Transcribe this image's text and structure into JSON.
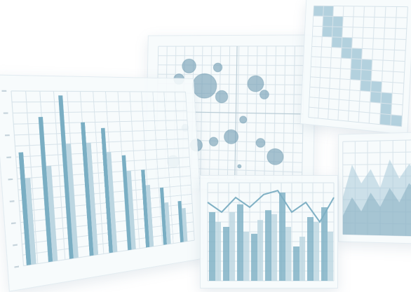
{
  "palette": {
    "bar_dark": "#7aaec3",
    "bar_light": "#bcd6e1",
    "bubble": "#6f9bb2",
    "cell": "#9cc3d3",
    "area": "#a9cad8",
    "grid": "#d7e3ea"
  },
  "panels": [
    {
      "name": "perspective-bar-chart",
      "type": "bar",
      "values_a": [
        52,
        68,
        78,
        65,
        62,
        48,
        40,
        30,
        22
      ],
      "values_b": [
        40,
        45,
        55,
        55,
        50,
        40,
        32,
        22,
        18
      ],
      "ylim": [
        0,
        80
      ]
    },
    {
      "name": "bubble-scatter-chart",
      "type": "scatter",
      "bubbles": [
        {
          "x": 0.15,
          "y": 0.75,
          "r": 0.06
        },
        {
          "x": 0.22,
          "y": 0.85,
          "r": 0.08
        },
        {
          "x": 0.33,
          "y": 0.7,
          "r": 0.14
        },
        {
          "x": 0.45,
          "y": 0.62,
          "r": 0.07
        },
        {
          "x": 0.42,
          "y": 0.84,
          "r": 0.05
        },
        {
          "x": 0.68,
          "y": 0.72,
          "r": 0.09
        },
        {
          "x": 0.74,
          "y": 0.64,
          "r": 0.05
        },
        {
          "x": 0.2,
          "y": 0.38,
          "r": 0.04
        },
        {
          "x": 0.28,
          "y": 0.25,
          "r": 0.07
        },
        {
          "x": 0.4,
          "y": 0.28,
          "r": 0.05
        },
        {
          "x": 0.52,
          "y": 0.32,
          "r": 0.08
        },
        {
          "x": 0.6,
          "y": 0.45,
          "r": 0.04
        },
        {
          "x": 0.72,
          "y": 0.28,
          "r": 0.05
        },
        {
          "x": 0.82,
          "y": 0.18,
          "r": 0.09
        },
        {
          "x": 0.12,
          "y": 0.12,
          "r": 0.07
        },
        {
          "x": 0.58,
          "y": 0.1,
          "r": 0.02
        }
      ]
    },
    {
      "name": "heatmap-chart",
      "type": "heatmap",
      "rows": 11,
      "cols": 9,
      "cells": [
        [
          0,
          0
        ],
        [
          0,
          1
        ],
        [
          1,
          1
        ],
        [
          1,
          2
        ],
        [
          2,
          1
        ],
        [
          2,
          2
        ],
        [
          3,
          2
        ],
        [
          3,
          3
        ],
        [
          4,
          3
        ],
        [
          4,
          4
        ],
        [
          5,
          4
        ],
        [
          5,
          5
        ],
        [
          6,
          5
        ],
        [
          7,
          5
        ],
        [
          7,
          6
        ],
        [
          8,
          6
        ],
        [
          9,
          7
        ],
        [
          10,
          7
        ],
        [
          10,
          8
        ],
        [
          6,
          4
        ],
        [
          8,
          7
        ]
      ]
    },
    {
      "name": "front-bar-line-chart",
      "type": "bar",
      "values_a": [
        70,
        55,
        78,
        48,
        72,
        90,
        35,
        65,
        75
      ],
      "values_b": [
        60,
        70,
        50,
        62,
        68,
        55,
        45,
        60,
        50
      ],
      "line": [
        80,
        70,
        85,
        75,
        88,
        92,
        70,
        80,
        60,
        85
      ],
      "ylim": [
        0,
        100
      ]
    },
    {
      "name": "area-chart",
      "type": "area",
      "series_a": [
        40,
        75,
        55,
        70,
        50,
        80,
        60,
        75,
        65
      ],
      "series_b": [
        20,
        40,
        25,
        45,
        30,
        50,
        35,
        55,
        45
      ],
      "ylim": [
        0,
        100
      ]
    }
  ]
}
